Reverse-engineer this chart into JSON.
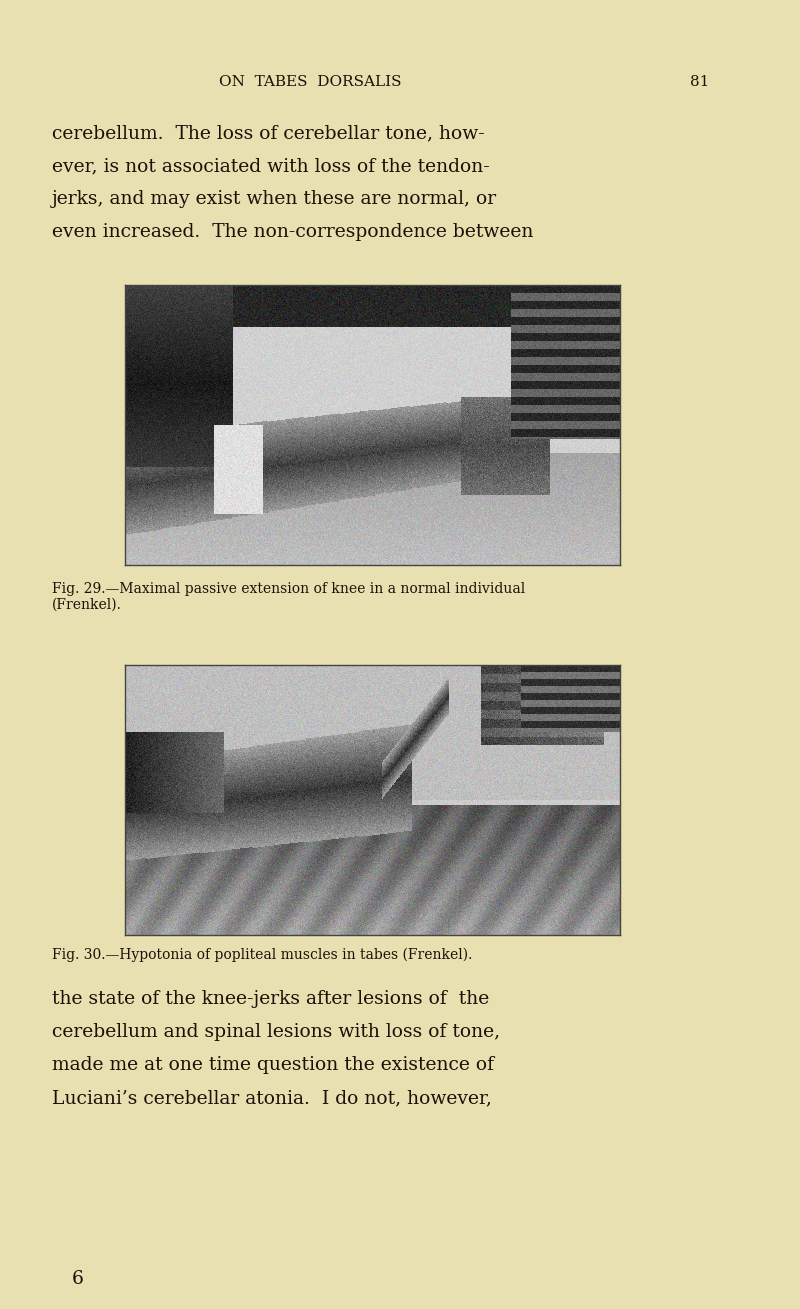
{
  "background_color": "#e8e0b0",
  "page_width": 8.0,
  "page_height": 13.09,
  "dpi": 100,
  "header_title": "ON  TABES  DORSALIS",
  "header_page": "81",
  "body_text_lines": [
    "cerebellum.  The loss of cerebellar tone, how-",
    "ever, is not associated with loss of the tendon-",
    "jerks, and may exist when these are normal, or",
    "even increased.  The non-correspondence between"
  ],
  "fig1_caption_line1": "Fig. 29.—Maximal passive extension of knee in a normal individual",
  "fig1_caption_line2": "(Frenkel).",
  "fig2_caption_line1": "Fig. 30.—Hypotonia of popliteal muscles in tabes (Frenkel).",
  "bottom_text_lines": [
    "the state of the knee-jerks after lesions of  the",
    "cerebellum and spinal lesions with loss of tone,",
    "made me at one time question the existence of",
    "Luciani’s cerebellar atonia.  I do not, however,"
  ],
  "page_num": "6",
  "text_color": "#1a1208",
  "img_border_color": "#444444"
}
